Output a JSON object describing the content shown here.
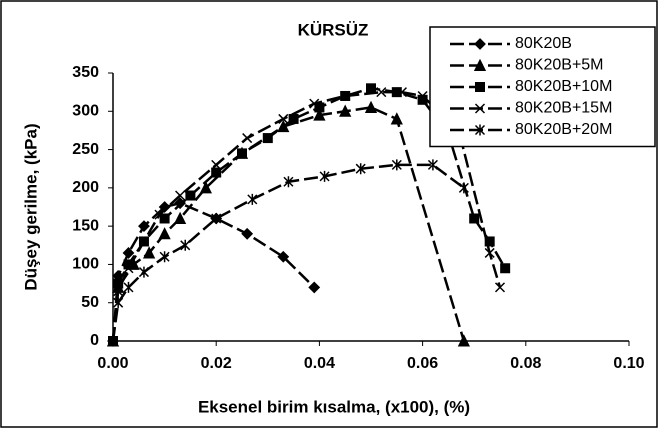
{
  "chart_data": {
    "type": "line",
    "title": "KÜRSÜZ",
    "x_label": "Eksenel birim kısalma, (x100), (%)",
    "y_label": "Düşey gerilme, (kPa)",
    "xlim": [
      0,
      0.1
    ],
    "xticks": [
      {
        "value": 0,
        "label": "0.00"
      },
      0.02,
      0.04,
      0.06,
      0.08,
      {
        "value": 0.1,
        "label": "0.10"
      }
    ],
    "ylim": [
      0,
      350
    ],
    "yticks": [
      0,
      50,
      100,
      150,
      200,
      250,
      300,
      350
    ],
    "grid": false,
    "legend": "upper right",
    "series": [
      {
        "name": "80K20B",
        "color": "#000000",
        "marker": "diamond",
        "x": [
          0,
          0.001,
          0.003,
          0.006,
          0.01,
          0.013,
          0.02,
          0.026,
          0.033,
          0.039
        ],
        "values": [
          0,
          85,
          115,
          150,
          175,
          180,
          160,
          140,
          110,
          70
        ]
      },
      {
        "name": "80K20B+5M",
        "color": "#000000",
        "marker": "triangle",
        "x": [
          0,
          0.001,
          0.004,
          0.007,
          0.01,
          0.013,
          0.018,
          0.025,
          0.033,
          0.04,
          0.045,
          0.05,
          0.055,
          0.068
        ],
        "values": [
          0,
          70,
          100,
          115,
          140,
          160,
          200,
          245,
          280,
          295,
          300,
          305,
          290,
          0
        ]
      },
      {
        "name": "80K20B+10M",
        "color": "#000000",
        "marker": "square",
        "x": [
          0,
          0.001,
          0.003,
          0.006,
          0.01,
          0.015,
          0.02,
          0.025,
          0.03,
          0.035,
          0.04,
          0.045,
          0.05,
          0.055,
          0.06,
          0.065,
          0.07,
          0.073,
          0.076
        ],
        "values": [
          0,
          75,
          100,
          130,
          160,
          190,
          220,
          245,
          265,
          290,
          305,
          320,
          330,
          325,
          315,
          270,
          160,
          130,
          95
        ]
      },
      {
        "name": "80K20B+15M",
        "color": "#000000",
        "marker": "x",
        "x": [
          0,
          0.001,
          0.003,
          0.006,
          0.009,
          0.013,
          0.02,
          0.026,
          0.033,
          0.039,
          0.045,
          0.052,
          0.056,
          0.06,
          0.067,
          0.073,
          0.075
        ],
        "values": [
          0,
          65,
          95,
          130,
          165,
          190,
          230,
          265,
          290,
          310,
          320,
          325,
          325,
          320,
          275,
          115,
          70
        ]
      },
      {
        "name": "80K20B+20M",
        "color": "#000000",
        "marker": "asterisk",
        "x": [
          0,
          0.001,
          0.003,
          0.006,
          0.01,
          0.014,
          0.02,
          0.027,
          0.034,
          0.041,
          0.048,
          0.055,
          0.062,
          0.068
        ],
        "values": [
          0,
          50,
          70,
          90,
          110,
          125,
          160,
          185,
          208,
          215,
          225,
          230,
          230,
          200
        ]
      }
    ]
  }
}
